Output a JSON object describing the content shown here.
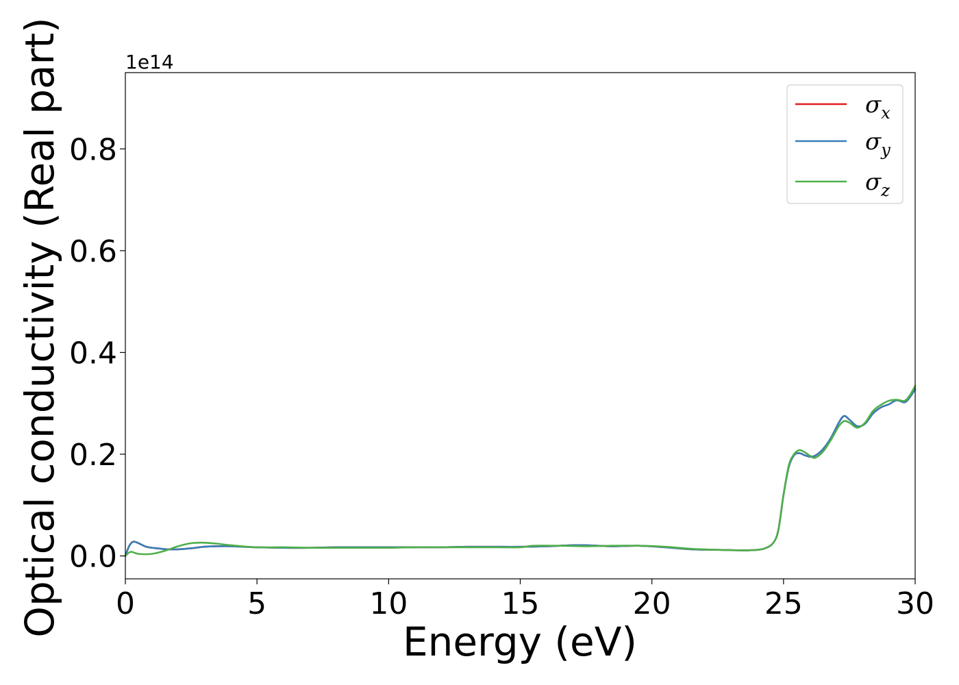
{
  "chart_data": {
    "type": "line",
    "xlabel": "Energy (eV)",
    "ylabel": "Optical conductivity (Real part)",
    "y_offset_label": "1e14",
    "xlim": [
      0,
      30
    ],
    "ylim": [
      -0.045,
      0.95
    ],
    "y_scale_factor": 100000000000000.0,
    "grid": false,
    "legend_position": "top-right",
    "x_ticks": [
      0,
      5,
      10,
      15,
      20,
      25,
      30
    ],
    "x_tick_labels": [
      "0",
      "5",
      "10",
      "15",
      "20",
      "25",
      "30"
    ],
    "y_ticks": [
      0.0,
      0.2,
      0.4,
      0.6,
      0.8
    ],
    "y_tick_labels": [
      "0.0",
      "0.2",
      "0.4",
      "0.6",
      "0.8"
    ],
    "series": [
      {
        "name": "σx",
        "legend_main": "σ",
        "legend_sub": "x",
        "color": "#e41a1c",
        "x": [
          0,
          0.15,
          0.3,
          0.5,
          0.8,
          1.2,
          1.6,
          2.0,
          2.5,
          3.0,
          3.5,
          4.0,
          5.0,
          6.0,
          7.0,
          8.0,
          9.0,
          10.0,
          11.0,
          12.0,
          13.0,
          14.0,
          15.0,
          16.0,
          17.0,
          17.5,
          18.5,
          19.5,
          20.5,
          21.5,
          22.5,
          23.5,
          24.0,
          24.3,
          24.6,
          24.8,
          25.0,
          25.2,
          25.4,
          25.6,
          25.8,
          26.0,
          26.2,
          26.5,
          26.8,
          27.1,
          27.3,
          27.5,
          27.8,
          28.1,
          28.4,
          28.7,
          29.0,
          29.3,
          29.6,
          29.8,
          30.0
        ],
        "y": [
          0.0,
          0.02,
          0.028,
          0.025,
          0.018,
          0.015,
          0.013,
          0.013,
          0.015,
          0.018,
          0.019,
          0.019,
          0.017,
          0.016,
          0.016,
          0.017,
          0.017,
          0.017,
          0.017,
          0.017,
          0.018,
          0.018,
          0.018,
          0.019,
          0.021,
          0.021,
          0.019,
          0.02,
          0.017,
          0.013,
          0.012,
          0.011,
          0.012,
          0.015,
          0.025,
          0.05,
          0.12,
          0.175,
          0.198,
          0.202,
          0.198,
          0.195,
          0.197,
          0.21,
          0.232,
          0.262,
          0.275,
          0.268,
          0.255,
          0.26,
          0.28,
          0.292,
          0.298,
          0.306,
          0.302,
          0.312,
          0.328
        ]
      },
      {
        "name": "σy",
        "legend_main": "σ",
        "legend_sub": "y",
        "color": "#377eb8",
        "x": [
          0,
          0.15,
          0.3,
          0.5,
          0.8,
          1.2,
          1.6,
          2.0,
          2.5,
          3.0,
          3.5,
          4.0,
          5.0,
          6.0,
          7.0,
          8.0,
          9.0,
          10.0,
          11.0,
          12.0,
          13.0,
          14.0,
          15.0,
          16.0,
          17.0,
          17.5,
          18.5,
          19.5,
          20.5,
          21.5,
          22.5,
          23.5,
          24.0,
          24.3,
          24.6,
          24.8,
          25.0,
          25.2,
          25.4,
          25.6,
          25.8,
          26.0,
          26.2,
          26.5,
          26.8,
          27.1,
          27.3,
          27.5,
          27.8,
          28.1,
          28.4,
          28.7,
          29.0,
          29.3,
          29.6,
          29.8,
          30.0
        ],
        "y": [
          0.0,
          0.02,
          0.028,
          0.025,
          0.018,
          0.015,
          0.013,
          0.013,
          0.015,
          0.018,
          0.019,
          0.019,
          0.017,
          0.016,
          0.016,
          0.017,
          0.017,
          0.017,
          0.017,
          0.017,
          0.018,
          0.018,
          0.018,
          0.019,
          0.021,
          0.021,
          0.019,
          0.02,
          0.017,
          0.013,
          0.012,
          0.011,
          0.012,
          0.015,
          0.025,
          0.05,
          0.12,
          0.175,
          0.198,
          0.202,
          0.198,
          0.195,
          0.197,
          0.21,
          0.232,
          0.262,
          0.275,
          0.268,
          0.255,
          0.26,
          0.28,
          0.292,
          0.298,
          0.306,
          0.302,
          0.312,
          0.328
        ]
      },
      {
        "name": "σz",
        "legend_main": "σ",
        "legend_sub": "z",
        "color": "#4daf4a",
        "x": [
          0,
          0.2,
          0.5,
          1.0,
          1.5,
          2.0,
          2.5,
          3.0,
          3.5,
          4.0,
          5.0,
          6.0,
          7.0,
          8.0,
          9.0,
          10.0,
          11.0,
          12.0,
          13.0,
          14.0,
          15.0,
          15.5,
          16.5,
          17.5,
          18.5,
          19.5,
          20.5,
          21.5,
          22.5,
          23.5,
          24.0,
          24.3,
          24.6,
          24.8,
          25.0,
          25.2,
          25.4,
          25.6,
          25.8,
          26.0,
          26.2,
          26.5,
          26.8,
          27.1,
          27.3,
          27.5,
          27.8,
          28.1,
          28.4,
          28.7,
          29.0,
          29.3,
          29.6,
          29.8,
          30.0
        ],
        "y": [
          0.0,
          0.008,
          0.004,
          0.004,
          0.01,
          0.019,
          0.025,
          0.026,
          0.024,
          0.021,
          0.017,
          0.017,
          0.016,
          0.016,
          0.016,
          0.016,
          0.017,
          0.017,
          0.017,
          0.017,
          0.017,
          0.02,
          0.02,
          0.019,
          0.02,
          0.02,
          0.018,
          0.014,
          0.012,
          0.011,
          0.012,
          0.015,
          0.025,
          0.05,
          0.12,
          0.178,
          0.2,
          0.208,
          0.204,
          0.197,
          0.193,
          0.205,
          0.228,
          0.255,
          0.265,
          0.262,
          0.252,
          0.262,
          0.285,
          0.297,
          0.305,
          0.307,
          0.305,
          0.316,
          0.334
        ]
      }
    ]
  }
}
